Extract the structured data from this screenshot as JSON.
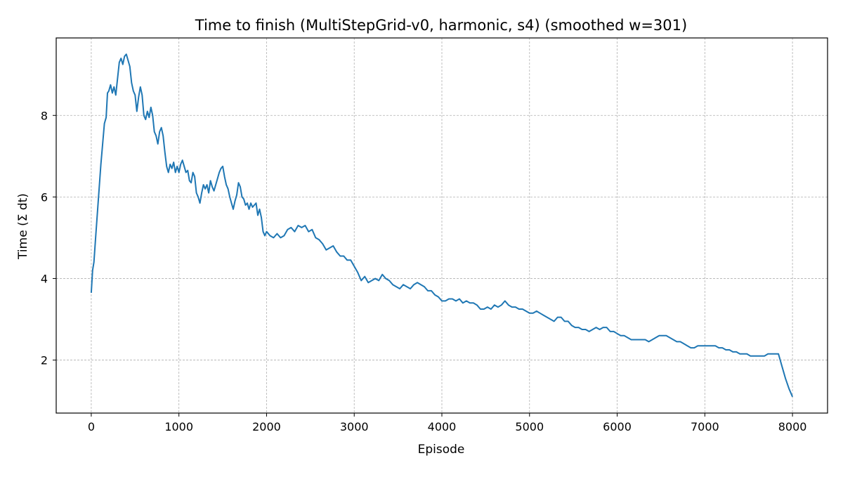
{
  "chart_data": {
    "type": "line",
    "title": "Time to finish (MultiStepGrid-v0, harmonic, s4) (smoothed w=301)",
    "xlabel": "Episode",
    "ylabel": "Time (Σ dt)",
    "xlim": [
      -400,
      8400
    ],
    "ylim": [
      0.7,
      9.9
    ],
    "xticks": [
      0,
      1000,
      2000,
      3000,
      4000,
      5000,
      6000,
      7000,
      8000
    ],
    "xtick_labels": [
      "0",
      "1000",
      "2000",
      "3000",
      "4000",
      "5000",
      "6000",
      "7000",
      "8000"
    ],
    "yticks": [
      2,
      4,
      6,
      8
    ],
    "ytick_labels": [
      "2",
      "4",
      "6",
      "8"
    ],
    "grid": true,
    "grid_style": "dashed",
    "legend": "none",
    "series": [
      {
        "color": "#1f77b4",
        "points": [
          [
            0,
            3.65
          ],
          [
            15,
            4.2
          ],
          [
            30,
            4.4
          ],
          [
            50,
            5.0
          ],
          [
            70,
            5.6
          ],
          [
            90,
            6.2
          ],
          [
            110,
            6.8
          ],
          [
            130,
            7.3
          ],
          [
            150,
            7.8
          ],
          [
            170,
            7.95
          ],
          [
            185,
            8.55
          ],
          [
            200,
            8.6
          ],
          [
            220,
            8.75
          ],
          [
            240,
            8.55
          ],
          [
            260,
            8.7
          ],
          [
            280,
            8.5
          ],
          [
            300,
            8.9
          ],
          [
            320,
            9.3
          ],
          [
            340,
            9.4
          ],
          [
            360,
            9.25
          ],
          [
            380,
            9.45
          ],
          [
            400,
            9.5
          ],
          [
            420,
            9.35
          ],
          [
            440,
            9.2
          ],
          [
            460,
            8.8
          ],
          [
            480,
            8.6
          ],
          [
            500,
            8.5
          ],
          [
            520,
            8.1
          ],
          [
            540,
            8.45
          ],
          [
            560,
            8.7
          ],
          [
            580,
            8.5
          ],
          [
            600,
            8.0
          ],
          [
            620,
            7.9
          ],
          [
            640,
            8.1
          ],
          [
            660,
            7.95
          ],
          [
            680,
            8.2
          ],
          [
            700,
            8.0
          ],
          [
            720,
            7.6
          ],
          [
            740,
            7.5
          ],
          [
            760,
            7.3
          ],
          [
            780,
            7.6
          ],
          [
            800,
            7.7
          ],
          [
            820,
            7.5
          ],
          [
            840,
            7.1
          ],
          [
            860,
            6.75
          ],
          [
            880,
            6.6
          ],
          [
            900,
            6.8
          ],
          [
            920,
            6.7
          ],
          [
            940,
            6.85
          ],
          [
            960,
            6.6
          ],
          [
            980,
            6.75
          ],
          [
            1000,
            6.6
          ],
          [
            1020,
            6.8
          ],
          [
            1040,
            6.9
          ],
          [
            1060,
            6.75
          ],
          [
            1080,
            6.6
          ],
          [
            1100,
            6.65
          ],
          [
            1120,
            6.4
          ],
          [
            1140,
            6.35
          ],
          [
            1160,
            6.6
          ],
          [
            1180,
            6.5
          ],
          [
            1200,
            6.1
          ],
          [
            1220,
            6.0
          ],
          [
            1240,
            5.85
          ],
          [
            1260,
            6.1
          ],
          [
            1280,
            6.3
          ],
          [
            1300,
            6.2
          ],
          [
            1320,
            6.3
          ],
          [
            1340,
            6.1
          ],
          [
            1360,
            6.4
          ],
          [
            1380,
            6.25
          ],
          [
            1400,
            6.15
          ],
          [
            1420,
            6.3
          ],
          [
            1440,
            6.45
          ],
          [
            1460,
            6.6
          ],
          [
            1480,
            6.7
          ],
          [
            1500,
            6.75
          ],
          [
            1520,
            6.5
          ],
          [
            1540,
            6.3
          ],
          [
            1560,
            6.2
          ],
          [
            1580,
            6.0
          ],
          [
            1600,
            5.85
          ],
          [
            1620,
            5.7
          ],
          [
            1640,
            5.9
          ],
          [
            1660,
            6.05
          ],
          [
            1680,
            6.35
          ],
          [
            1700,
            6.25
          ],
          [
            1720,
            6.0
          ],
          [
            1740,
            5.95
          ],
          [
            1760,
            5.8
          ],
          [
            1780,
            5.85
          ],
          [
            1800,
            5.7
          ],
          [
            1820,
            5.85
          ],
          [
            1840,
            5.75
          ],
          [
            1860,
            5.8
          ],
          [
            1880,
            5.85
          ],
          [
            1900,
            5.55
          ],
          [
            1920,
            5.7
          ],
          [
            1940,
            5.5
          ],
          [
            1960,
            5.15
          ],
          [
            1980,
            5.05
          ],
          [
            2000,
            5.15
          ],
          [
            2040,
            5.05
          ],
          [
            2080,
            5.0
          ],
          [
            2120,
            5.1
          ],
          [
            2160,
            5.0
          ],
          [
            2200,
            5.05
          ],
          [
            2240,
            5.2
          ],
          [
            2280,
            5.25
          ],
          [
            2320,
            5.15
          ],
          [
            2360,
            5.3
          ],
          [
            2400,
            5.25
          ],
          [
            2440,
            5.3
          ],
          [
            2480,
            5.15
          ],
          [
            2520,
            5.2
          ],
          [
            2560,
            5.0
          ],
          [
            2600,
            4.95
          ],
          [
            2640,
            4.85
          ],
          [
            2680,
            4.7
          ],
          [
            2720,
            4.75
          ],
          [
            2760,
            4.8
          ],
          [
            2800,
            4.65
          ],
          [
            2840,
            4.55
          ],
          [
            2880,
            4.55
          ],
          [
            2920,
            4.45
          ],
          [
            2960,
            4.45
          ],
          [
            3000,
            4.3
          ],
          [
            3040,
            4.15
          ],
          [
            3080,
            3.95
          ],
          [
            3120,
            4.05
          ],
          [
            3160,
            3.9
          ],
          [
            3200,
            3.95
          ],
          [
            3240,
            4.0
          ],
          [
            3280,
            3.95
          ],
          [
            3320,
            4.1
          ],
          [
            3360,
            4.0
          ],
          [
            3400,
            3.95
          ],
          [
            3440,
            3.85
          ],
          [
            3480,
            3.8
          ],
          [
            3520,
            3.75
          ],
          [
            3560,
            3.85
          ],
          [
            3600,
            3.8
          ],
          [
            3640,
            3.75
          ],
          [
            3680,
            3.85
          ],
          [
            3720,
            3.9
          ],
          [
            3760,
            3.85
          ],
          [
            3800,
            3.8
          ],
          [
            3840,
            3.7
          ],
          [
            3880,
            3.7
          ],
          [
            3920,
            3.6
          ],
          [
            3960,
            3.55
          ],
          [
            4000,
            3.45
          ],
          [
            4040,
            3.45
          ],
          [
            4080,
            3.5
          ],
          [
            4120,
            3.5
          ],
          [
            4160,
            3.45
          ],
          [
            4200,
            3.5
          ],
          [
            4240,
            3.4
          ],
          [
            4280,
            3.45
          ],
          [
            4320,
            3.4
          ],
          [
            4360,
            3.4
          ],
          [
            4400,
            3.35
          ],
          [
            4440,
            3.25
          ],
          [
            4480,
            3.25
          ],
          [
            4520,
            3.3
          ],
          [
            4560,
            3.25
          ],
          [
            4600,
            3.35
          ],
          [
            4640,
            3.3
          ],
          [
            4680,
            3.35
          ],
          [
            4720,
            3.45
          ],
          [
            4760,
            3.35
          ],
          [
            4800,
            3.3
          ],
          [
            4840,
            3.3
          ],
          [
            4880,
            3.25
          ],
          [
            4920,
            3.25
          ],
          [
            4960,
            3.2
          ],
          [
            5000,
            3.15
          ],
          [
            5040,
            3.15
          ],
          [
            5080,
            3.2
          ],
          [
            5120,
            3.15
          ],
          [
            5160,
            3.1
          ],
          [
            5200,
            3.05
          ],
          [
            5240,
            3.0
          ],
          [
            5280,
            2.95
          ],
          [
            5320,
            3.05
          ],
          [
            5360,
            3.05
          ],
          [
            5400,
            2.95
          ],
          [
            5440,
            2.95
          ],
          [
            5480,
            2.85
          ],
          [
            5520,
            2.8
          ],
          [
            5560,
            2.8
          ],
          [
            5600,
            2.75
          ],
          [
            5640,
            2.75
          ],
          [
            5680,
            2.7
          ],
          [
            5720,
            2.75
          ],
          [
            5760,
            2.8
          ],
          [
            5800,
            2.75
          ],
          [
            5840,
            2.8
          ],
          [
            5880,
            2.8
          ],
          [
            5920,
            2.7
          ],
          [
            5960,
            2.7
          ],
          [
            6000,
            2.65
          ],
          [
            6040,
            2.6
          ],
          [
            6080,
            2.6
          ],
          [
            6120,
            2.55
          ],
          [
            6160,
            2.5
          ],
          [
            6200,
            2.5
          ],
          [
            6240,
            2.5
          ],
          [
            6280,
            2.5
          ],
          [
            6320,
            2.5
          ],
          [
            6360,
            2.45
          ],
          [
            6400,
            2.5
          ],
          [
            6440,
            2.55
          ],
          [
            6480,
            2.6
          ],
          [
            6520,
            2.6
          ],
          [
            6560,
            2.6
          ],
          [
            6600,
            2.55
          ],
          [
            6640,
            2.5
          ],
          [
            6680,
            2.45
          ],
          [
            6720,
            2.45
          ],
          [
            6760,
            2.4
          ],
          [
            6800,
            2.35
          ],
          [
            6840,
            2.3
          ],
          [
            6880,
            2.3
          ],
          [
            6920,
            2.35
          ],
          [
            6960,
            2.35
          ],
          [
            7000,
            2.35
          ],
          [
            7040,
            2.35
          ],
          [
            7080,
            2.35
          ],
          [
            7120,
            2.35
          ],
          [
            7160,
            2.3
          ],
          [
            7200,
            2.3
          ],
          [
            7240,
            2.25
          ],
          [
            7280,
            2.25
          ],
          [
            7320,
            2.2
          ],
          [
            7360,
            2.2
          ],
          [
            7400,
            2.15
          ],
          [
            7440,
            2.15
          ],
          [
            7480,
            2.15
          ],
          [
            7520,
            2.1
          ],
          [
            7560,
            2.1
          ],
          [
            7600,
            2.1
          ],
          [
            7640,
            2.1
          ],
          [
            7680,
            2.1
          ],
          [
            7720,
            2.15
          ],
          [
            7760,
            2.15
          ],
          [
            7800,
            2.15
          ],
          [
            7840,
            2.15
          ],
          [
            7880,
            1.85
          ],
          [
            7920,
            1.55
          ],
          [
            7960,
            1.3
          ],
          [
            8000,
            1.1
          ]
        ]
      }
    ]
  }
}
